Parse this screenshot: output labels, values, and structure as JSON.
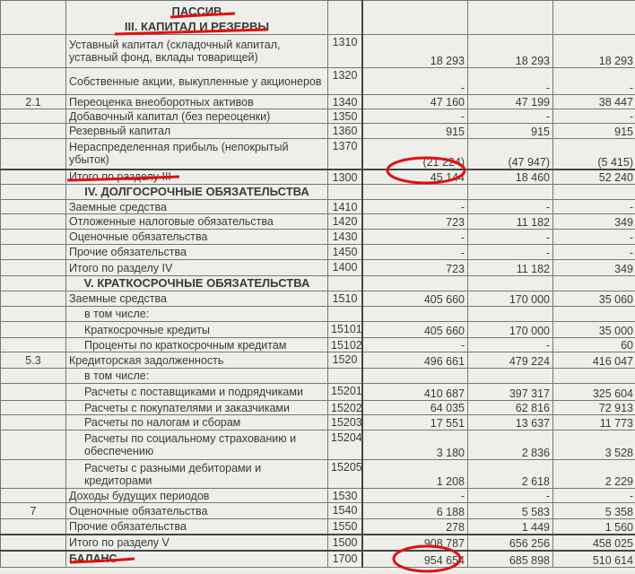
{
  "title": "ПАССИВ",
  "colors": {
    "annotation": "#e01010",
    "ink": "#3a3a3a",
    "paper": "#eeeeea"
  },
  "rows": [
    {
      "type": "head",
      "note": "",
      "label": "III. КАПИТАЛ И РЕЗЕРВЫ",
      "code": "",
      "v1": "",
      "v2": "",
      "v3": "",
      "h": 38
    },
    {
      "note": "",
      "label": "Уставный капитал (складочный капитал, уставный фонд, вклады товарищей)",
      "code": "1310",
      "v1": "18 293",
      "v2": "18 293",
      "v3": "18 293",
      "h": 37
    },
    {
      "note": "",
      "label": "Собственные акции, выкупленные у акционеров",
      "code": "1320",
      "v1": "-",
      "v2": "-",
      "v3": "-",
      "h": 30
    },
    {
      "note": "2.1",
      "label": "Переоценка внеоборотных активов",
      "code": "1340",
      "v1": "47 160",
      "v2": "47 199",
      "v3": "38 447",
      "h": 16
    },
    {
      "note": "",
      "label": "Добавочный капитал (без переоценки)",
      "code": "1350",
      "v1": "-",
      "v2": "-",
      "v3": "-",
      "h": 16
    },
    {
      "note": "",
      "label": "Резервный капитал",
      "code": "1360",
      "v1": "915",
      "v2": "915",
      "v3": "915",
      "h": 17
    },
    {
      "note": "",
      "label": "Нераспределенная прибыль (непокрытый убыток)",
      "code": "1370",
      "v1": "(21 224)",
      "v2": "(47 947)",
      "v3": "(5 415)",
      "h": 34
    },
    {
      "type": "total",
      "note": "",
      "label": "Итого по разделу III",
      "code": "1300",
      "v1": "45 144",
      "v2": "18 460",
      "v3": "52 240",
      "h": 17
    },
    {
      "type": "head",
      "note": "",
      "label": "IV. ДОЛГОСРОЧНЫЕ ОБЯЗАТЕЛЬСТВА",
      "code": "",
      "v1": "",
      "v2": "",
      "v3": "",
      "h": 17
    },
    {
      "note": "",
      "label": "Заемные средства",
      "code": "1410",
      "v1": "-",
      "v2": "-",
      "v3": "-",
      "h": 16
    },
    {
      "note": "",
      "label": "Отложенные налоговые обязательства",
      "code": "1420",
      "v1": "723",
      "v2": "11 182",
      "v3": "349",
      "h": 17
    },
    {
      "note": "",
      "label": "Оценочные обязательства",
      "code": "1430",
      "v1": "-",
      "v2": "-",
      "v3": "-",
      "h": 17
    },
    {
      "note": "",
      "label": "Прочие обязательства",
      "code": "1450",
      "v1": "-",
      "v2": "-",
      "v3": "-",
      "h": 17
    },
    {
      "note": "",
      "label": "Итого по разделу IV",
      "code": "1400",
      "v1": "723",
      "v2": "11 182",
      "v3": "349",
      "h": 18
    },
    {
      "type": "head",
      "note": "",
      "label": "V. КРАТКОСРОЧНЫЕ ОБЯЗАТЕЛЬСТВА",
      "code": "",
      "v1": "",
      "v2": "",
      "v3": "",
      "h": 17
    },
    {
      "note": "",
      "label": "Заемные средства",
      "code": "1510",
      "v1": "405 660",
      "v2": "170 000",
      "v3": "35 060",
      "h": 17
    },
    {
      "indent": true,
      "note": "",
      "label": "в том числе:",
      "code": "",
      "v1": "",
      "v2": "",
      "v3": "",
      "h": 17
    },
    {
      "indent": true,
      "note": "",
      "label": "Краткосрочные кредиты",
      "code": "15101",
      "v1": "405 660",
      "v2": "170 000",
      "v3": "35 000",
      "h": 18
    },
    {
      "indent": true,
      "note": "",
      "label": "Проценты по краткосрочным кредитам",
      "code": "15102",
      "v1": "-",
      "v2": "-",
      "v3": "60",
      "h": 16
    },
    {
      "note": "5.3",
      "label": "Кредиторская задолженность",
      "code": "1520",
      "v1": "496 661",
      "v2": "479 224",
      "v3": "416 047",
      "h": 18
    },
    {
      "indent": true,
      "note": "",
      "label": "в том числе:",
      "code": "",
      "v1": "",
      "v2": "",
      "v3": "",
      "h": 17
    },
    {
      "indent": true,
      "note": "",
      "label": "Расчеты с поставщиками и подрядчиками",
      "code": "15201",
      "v1": "410 687",
      "v2": "397 317",
      "v3": "325 604",
      "h": 19
    },
    {
      "indent": true,
      "note": "",
      "label": "Расчеты с покупателями и заказчиками",
      "code": "15202",
      "v1": "64 035",
      "v2": "62 816",
      "v3": "72 913",
      "h": 16
    },
    {
      "indent": true,
      "note": "",
      "label": "Расчеты по налогам и сборам",
      "code": "15203",
      "v1": "17 551",
      "v2": "13 637",
      "v3": "11 773",
      "h": 17
    },
    {
      "indent": true,
      "note": "",
      "label": "Расчеты по социальному страхованию и обеспечению",
      "code": "15204",
      "v1": "3 180",
      "v2": "2 836",
      "v3": "3 528",
      "h": 33
    },
    {
      "indent": true,
      "note": "",
      "label": "Расчеты с разными дебиторами и кредиторами",
      "code": "15205",
      "v1": "1 208",
      "v2": "2 618",
      "v3": "2 229",
      "h": 32
    },
    {
      "note": "",
      "label": "Доходы будущих периодов",
      "code": "1530",
      "v1": "-",
      "v2": "-",
      "v3": "-",
      "h": 16
    },
    {
      "note": "7",
      "label": "Оценочные обязательства",
      "code": "1540",
      "v1": "6 188",
      "v2": "5 583",
      "v3": "5 358",
      "h": 18
    },
    {
      "note": "",
      "label": "Прочие обязательства",
      "code": "1550",
      "v1": "278",
      "v2": "1 449",
      "v3": "1 560",
      "h": 17
    },
    {
      "type": "total",
      "note": "",
      "label": "Итого по разделу V",
      "code": "1500",
      "v1": "908 787",
      "v2": "656 256",
      "v3": "458 025",
      "h": 18
    },
    {
      "type": "total",
      "bold": true,
      "note": "",
      "label": "БАЛАНС",
      "code": "1700",
      "v1": "954 654",
      "v2": "685 898",
      "v3": "510 614",
      "h": 19
    }
  ]
}
